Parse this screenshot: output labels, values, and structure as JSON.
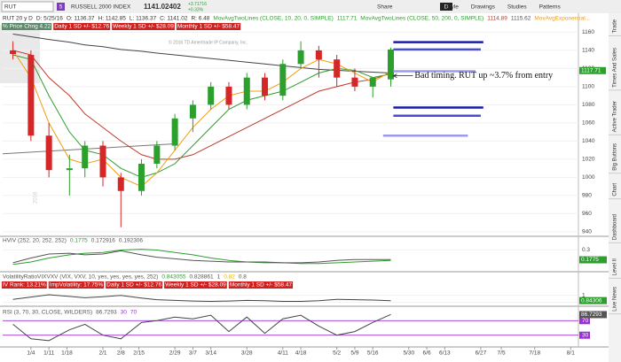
{
  "toolbar": {
    "symbol": "RUT",
    "link_group": "5",
    "description": "RUSSELL 2000 INDEX",
    "last": "1141.02402",
    "net_change": "+3.71716",
    "pct_change": "+0.33%",
    "aggregation": "D",
    "buttons": [
      "Share",
      "Style",
      "Drawings",
      "Studies",
      "Patterns"
    ]
  },
  "status_line": [
    "RUT 20 y D",
    "D: 5/25/16",
    "O: 1136.37",
    "H: 1142.85",
    "L: 1136.37",
    "C: 1141.02",
    "R: 6.48"
  ],
  "study_labels": [
    {
      "text": "MovAvgTwoLines (CLOSE, 10, 20, 0, SIMPLE)",
      "color": "#2e9e2e"
    },
    {
      "text": "1117.71",
      "color": "#2e9e2e"
    },
    {
      "text": "MovAvgTwoLines (CLOSE, 50, 200, 0, SIMPLE)",
      "color": "#2e9e2e"
    },
    {
      "text": "1114.89",
      "color": "#c0392b"
    },
    {
      "text": "1115.62",
      "color": "#555555"
    },
    {
      "text": "MovAvgExponential...",
      "color": "#f39c12"
    }
  ],
  "overlay_labels": [
    {
      "text": "% Price Chng 4.22",
      "color": "#ffffff",
      "bg": "#5c8a6a"
    },
    {
      "text": "Daily 1 SD +/- $12.76",
      "color": "#ffffff",
      "bg": "#cc2222"
    },
    {
      "text": "Weekly 1 SD +/- $28.09",
      "color": "#ffffff",
      "bg": "#cc2222"
    },
    {
      "text": "Monthly 1 SD +/- $58.47",
      "color": "#ffffff",
      "bg": "#cc2222"
    }
  ],
  "copyright": "© 2016 TD Ameritrade IP Company, Inc.",
  "watermark": "2016",
  "annotation": "Bad timing.  RUT up ~3.7% from entry",
  "sidebar_tabs": [
    "Trade",
    "Times And Sales",
    "Active Trader",
    "Big Buttons",
    "Chart",
    "Dashboard",
    "Level II",
    "Live News"
  ],
  "chart_data": [
    {
      "type": "candlestick",
      "x": [
        "12/28",
        "1/4",
        "1/11",
        "1/19",
        "1/25",
        "2/1",
        "2/8",
        "2/16",
        "2/22",
        "2/29",
        "3/7",
        "3/14",
        "3/21",
        "3/28",
        "4/4",
        "4/11",
        "4/18",
        "4/25",
        "5/2",
        "5/9",
        "5/16",
        "5/23"
      ],
      "open": [
        1140,
        1135,
        1046,
        1008,
        1010,
        1035,
        1000,
        985,
        1015,
        1035,
        1065,
        1080,
        1100,
        1080,
        1110,
        1090,
        1125,
        1140,
        1130,
        1110,
        1100,
        1108
      ],
      "high": [
        1150,
        1140,
        1060,
        1025,
        1040,
        1040,
        1005,
        1020,
        1040,
        1070,
        1085,
        1105,
        1105,
        1115,
        1115,
        1130,
        1150,
        1145,
        1135,
        1120,
        1110,
        1143
      ],
      "low": [
        1130,
        1040,
        1000,
        980,
        1000,
        990,
        945,
        980,
        1010,
        1030,
        1050,
        1075,
        1075,
        1075,
        1085,
        1085,
        1120,
        1110,
        1100,
        1095,
        1088,
        1100
      ],
      "close": [
        1136,
        1046,
        1008,
        1010,
        1035,
        1000,
        985,
        1015,
        1035,
        1065,
        1080,
        1100,
        1080,
        1110,
        1090,
        1125,
        1140,
        1130,
        1110,
        1100,
        1110,
        1141
      ],
      "up_color": "#2ca02c",
      "down_color": "#d62728",
      "overlays": [
        {
          "color": "#444444",
          "values": [
            1158,
            1155,
            1152,
            1149,
            1146,
            1144,
            1141,
            1139,
            1137,
            1135,
            1133,
            1131,
            1129,
            1127,
            1125,
            1123,
            1121,
            1119,
            1118,
            1117,
            1116,
            1115
          ]
        },
        {
          "color": "#c0392b",
          "values": [
            1140,
            1135,
            1110,
            1090,
            1070,
            1055,
            1040,
            1025,
            1020,
            1020,
            1025,
            1035,
            1045,
            1055,
            1065,
            1075,
            1085,
            1095,
            1100,
            1105,
            1108,
            1115
          ]
        },
        {
          "color": "#2e9e2e",
          "values": [
            1135,
            1130,
            1090,
            1050,
            1030,
            1025,
            1010,
            1000,
            1005,
            1015,
            1035,
            1055,
            1075,
            1085,
            1090,
            1095,
            1105,
            1115,
            1120,
            1118,
            1110,
            1114
          ]
        },
        {
          "color": "#f39c12",
          "values": [
            1140,
            1110,
            1060,
            1020,
            1015,
            1020,
            1000,
            990,
            1005,
            1030,
            1055,
            1075,
            1090,
            1095,
            1095,
            1105,
            1120,
            1130,
            1125,
            1115,
            1105,
            1117
          ]
        }
      ],
      "trendline": {
        "x": [
          "12/24",
          "2/29"
        ],
        "values": [
          1026,
          1037
        ],
        "color": "#777777"
      },
      "levels": [
        {
          "value": 1149,
          "x": [
            "5/24",
            "6/28"
          ],
          "color": "#1a1aa8"
        },
        {
          "value": 1141,
          "x": [
            "5/24",
            "6/27"
          ],
          "color": "#4a4ad8"
        },
        {
          "value": 1117,
          "x": [
            "5/24",
            "6/25"
          ],
          "color": "#9a9aee"
        },
        {
          "value": 1077,
          "x": [
            "5/24",
            "6/28"
          ],
          "color": "#1a1aa8"
        },
        {
          "value": 1068,
          "x": [
            "5/24",
            "6/27"
          ],
          "color": "#4a4ad8"
        },
        {
          "value": 1046,
          "x": [
            "5/20",
            "6/22"
          ],
          "color": "#9a9aee"
        }
      ],
      "annotation_point": {
        "x": "5/24",
        "value": 1112
      },
      "price_label": {
        "value": 1117.71,
        "label": "1117.71",
        "color": "#2e9e2e"
      },
      "xlim": [
        "12/24",
        "8/4"
      ],
      "xticks": [
        "1/4",
        "1/11",
        "1/18",
        "2/1",
        "2/8",
        "2/15",
        "2/29",
        "3/7",
        "3/14",
        "3/28",
        "4/11",
        "4/18",
        "5/2",
        "5/9",
        "5/16",
        "5/30",
        "6/6",
        "6/13",
        "6/27",
        "7/5",
        "7/18",
        "8/1"
      ],
      "ylim": [
        936,
        1176
      ],
      "yticks": [
        940,
        960,
        980,
        1000,
        1020,
        1040,
        1060,
        1080,
        1100,
        1120,
        1140,
        1160
      ],
      "grid": true
    },
    {
      "type": "line",
      "header": [
        [
          {
            "text": "HVIV (252, 20, 252, 252)",
            "color": "#555555"
          },
          {
            "text": "0.1775",
            "color": "#2e9e2e"
          },
          {
            "text": "0.172916",
            "color": "#555555"
          },
          {
            "text": "0.192306",
            "color": "#555555"
          }
        ]
      ],
      "x": [
        "12/28",
        "1/4",
        "1/11",
        "1/19",
        "1/25",
        "2/1",
        "2/8",
        "2/16",
        "2/22",
        "2/29",
        "3/7",
        "3/14",
        "3/21",
        "3/28",
        "4/4",
        "4/11",
        "4/18",
        "4/25",
        "5/2",
        "5/9",
        "5/16",
        "5/23"
      ],
      "series": [
        {
          "color": "#2e9e2e",
          "values": [
            0.12,
            0.15,
            0.2,
            0.24,
            0.26,
            0.27,
            0.3,
            0.31,
            0.3,
            0.27,
            0.24,
            0.2,
            0.17,
            0.15,
            0.14,
            0.14,
            0.13,
            0.13,
            0.14,
            0.15,
            0.16,
            0.17
          ]
        },
        {
          "color": "#555555",
          "values": [
            0.14,
            0.2,
            0.25,
            0.26,
            0.24,
            0.25,
            0.29,
            0.24,
            0.21,
            0.19,
            0.17,
            0.16,
            0.15,
            0.15,
            0.15,
            0.14,
            0.14,
            0.15,
            0.17,
            0.18,
            0.18,
            0.18
          ]
        }
      ],
      "last_labels": [
        {
          "value": 0.1775,
          "label": "0.1775",
          "color": "#2e9e2e"
        }
      ],
      "ylim": [
        0.05,
        0.35
      ],
      "yticks": [
        0.3
      ]
    },
    {
      "type": "line",
      "header": [
        [
          {
            "text": "VolatilityRatioVIXVXV (VIX, VXV, 10, yes, yes, yes, yes, 252)",
            "color": "#555555"
          },
          {
            "text": "0.843055",
            "color": "#2e9e2e"
          },
          {
            "text": "0.828861",
            "color": "#555555"
          },
          {
            "text": "1",
            "color": "#555555"
          },
          {
            "text": "0.82",
            "color": "#e6b800"
          },
          {
            "text": "0.8",
            "color": "#555555"
          }
        ],
        [
          {
            "text": "IV Rank: 13.21%",
            "color": "#ffffff",
            "bg": "#cc2222"
          },
          {
            "text": "ImpVolatility: 17.75%",
            "color": "#ffffff",
            "bg": "#cc2222"
          },
          {
            "text": "Daily 1 SD +/- $12.76",
            "color": "#ffffff",
            "bg": "#cc2222"
          },
          {
            "text": "Weekly 1 SD +/- $28.09",
            "color": "#ffffff",
            "bg": "#cc2222"
          },
          {
            "text": "Monthly 1 SD +/- $58.47",
            "color": "#ffffff",
            "bg": "#cc2222"
          }
        ]
      ],
      "x": [
        "12/28",
        "1/4",
        "1/11",
        "1/19",
        "1/25",
        "2/1",
        "2/8",
        "2/16",
        "2/22",
        "2/29",
        "3/7",
        "3/14",
        "3/21",
        "3/28",
        "4/4",
        "4/11",
        "4/18",
        "4/25",
        "5/2",
        "5/9",
        "5/16",
        "5/23"
      ],
      "series": [
        {
          "color": "#444444",
          "values": [
            0.88,
            0.95,
            1.02,
            0.97,
            0.93,
            0.96,
            1.0,
            0.92,
            0.87,
            0.85,
            0.83,
            0.82,
            0.83,
            0.85,
            0.84,
            0.82,
            0.82,
            0.84,
            0.88,
            0.87,
            0.86,
            0.84
          ]
        }
      ],
      "last_labels": [
        {
          "value": 0.84306,
          "label": "0.84306",
          "color": "#2e9e2e"
        }
      ],
      "ylim": [
        0.7,
        1.1
      ],
      "yticks": [
        0.8,
        1
      ]
    },
    {
      "type": "line",
      "header": [
        [
          {
            "text": "RSI (3, 70, 30, CLOSE, WILDERS)",
            "color": "#555555"
          },
          {
            "text": "86.7293",
            "color": "#555555"
          },
          {
            "text": "30",
            "color": "#9b30d9"
          },
          {
            "text": "70",
            "color": "#9b30d9"
          }
        ]
      ],
      "x": [
        "12/28",
        "1/4",
        "1/11",
        "1/19",
        "1/25",
        "2/1",
        "2/8",
        "2/16",
        "2/22",
        "2/29",
        "3/7",
        "3/14",
        "3/21",
        "3/28",
        "4/4",
        "4/11",
        "4/18",
        "4/25",
        "5/2",
        "5/9",
        "5/16",
        "5/23"
      ],
      "series": [
        {
          "color": "#444444",
          "values": [
            60,
            20,
            15,
            45,
            60,
            30,
            20,
            65,
            70,
            80,
            75,
            85,
            40,
            80,
            35,
            75,
            85,
            55,
            30,
            40,
            65,
            87
          ]
        }
      ],
      "last_labels": [
        {
          "value": 86.7293,
          "label": "86.7293",
          "color": "#555555"
        }
      ],
      "ylim": [
        0,
        100
      ],
      "yticks": [
        30,
        70
      ],
      "tick_color": "#9b30d9"
    }
  ]
}
